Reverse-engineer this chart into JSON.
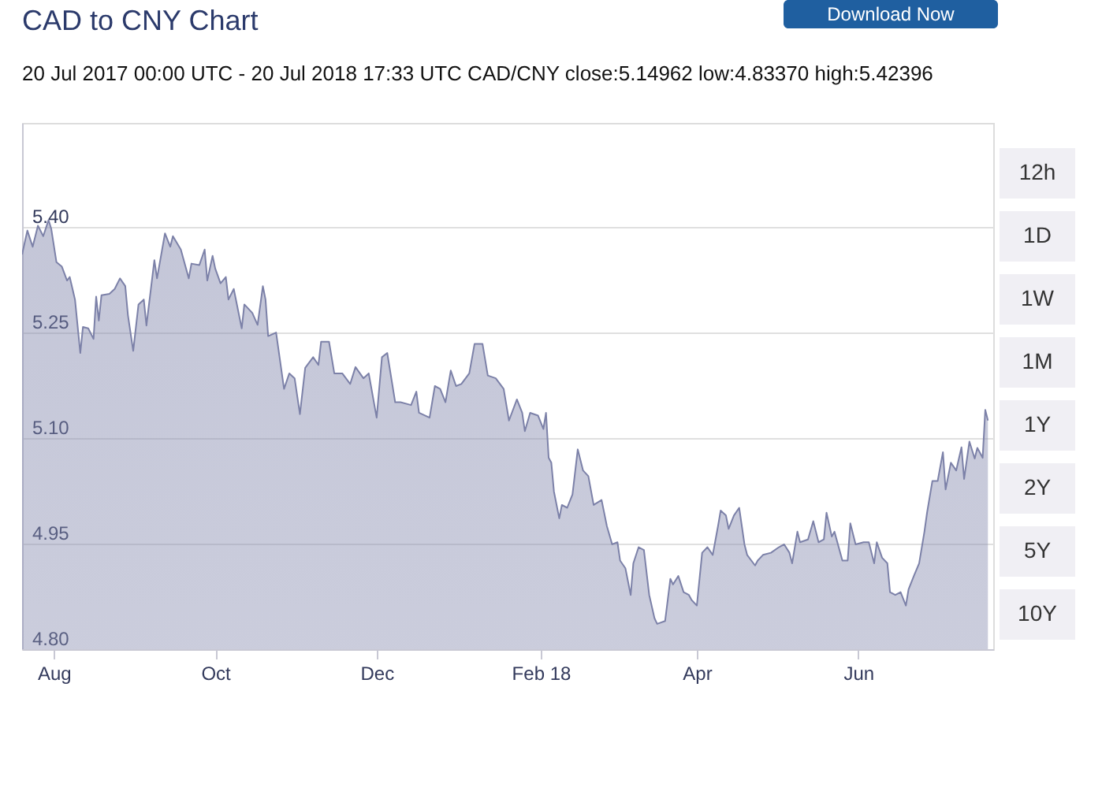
{
  "chart_data": {
    "type": "area",
    "title": "CAD to CNY Chart",
    "subtitle": "20 Jul 2017 00:00 UTC - 20 Jul 2018 17:33 UTC   CAD/CNY close:5.14962 low:4.83370 high:5.42396",
    "annotations": [
      "Download Now",
      "12h",
      "1D",
      "1W",
      "1M",
      "1Y",
      "2Y",
      "5Y",
      "10Y"
    ],
    "xlim": [
      "2017-07-20",
      "2018-07-22"
    ],
    "xticks": [
      {
        "value": "2017-08-01",
        "label": "Aug"
      },
      {
        "value": "2017-10-01",
        "label": "Oct"
      },
      {
        "value": "2017-12-01",
        "label": "Dec"
      },
      {
        "value": "2018-02-01",
        "label": "Feb 18"
      },
      {
        "value": "2018-04-01",
        "label": "Apr"
      },
      {
        "value": "2018-06-01",
        "label": "Jun"
      }
    ],
    "ylim": [
      4.8,
      5.548
    ],
    "yticks": [
      {
        "value": 4.8,
        "label": "4.80"
      },
      {
        "value": 4.95,
        "label": "4.95"
      },
      {
        "value": 5.1,
        "label": "5.10"
      },
      {
        "value": 5.25,
        "label": "5.25"
      },
      {
        "value": 5.4,
        "label": "5.40"
      }
    ],
    "grid": "y",
    "x": [
      "2017-07-20",
      "2017-07-22",
      "2017-07-24",
      "2017-07-26",
      "2017-07-28",
      "2017-07-30",
      "2017-07-31",
      "2017-08-02",
      "2017-08-04",
      "2017-08-06",
      "2017-08-07",
      "2017-08-09",
      "2017-08-11",
      "2017-08-12",
      "2017-08-14",
      "2017-08-16",
      "2017-08-17",
      "2017-08-18",
      "2017-08-19",
      "2017-08-22",
      "2017-08-24",
      "2017-08-26",
      "2017-08-28",
      "2017-08-29",
      "2017-08-31",
      "2017-09-02",
      "2017-09-04",
      "2017-09-05",
      "2017-09-08",
      "2017-09-09",
      "2017-09-12",
      "2017-09-14",
      "2017-09-15",
      "2017-09-18",
      "2017-09-21",
      "2017-09-22",
      "2017-09-25",
      "2017-09-27",
      "2017-09-28",
      "2017-09-30",
      "2017-10-01",
      "2017-10-03",
      "2017-10-05",
      "2017-10-06",
      "2017-10-08",
      "2017-10-11",
      "2017-10-12",
      "2017-10-15",
      "2017-10-17",
      "2017-10-19",
      "2017-10-20",
      "2017-10-21",
      "2017-10-24",
      "2017-10-27",
      "2017-10-29",
      "2017-10-31",
      "2017-11-02",
      "2017-11-04",
      "2017-11-07",
      "2017-11-09",
      "2017-11-10",
      "2017-11-13",
      "2017-11-15",
      "2017-11-18",
      "2017-11-21",
      "2017-11-23",
      "2017-11-26",
      "2017-11-28",
      "2017-12-01",
      "2017-12-03",
      "2017-12-05",
      "2017-12-08",
      "2017-12-10",
      "2017-12-14",
      "2017-12-16",
      "2017-12-17",
      "2017-12-21",
      "2017-12-23",
      "2017-12-25",
      "2017-12-27",
      "2017-12-29",
      "2017-12-31",
      "2018-01-02",
      "2018-01-05",
      "2018-01-07",
      "2018-01-10",
      "2018-01-12",
      "2018-01-15",
      "2018-01-18",
      "2018-01-20",
      "2018-01-23",
      "2018-01-25",
      "2018-01-26",
      "2018-01-28",
      "2018-01-31",
      "2018-02-02",
      "2018-02-03",
      "2018-02-04",
      "2018-02-05",
      "2018-02-06",
      "2018-02-08",
      "2018-02-09",
      "2018-02-11",
      "2018-02-13",
      "2018-02-15",
      "2018-02-17",
      "2018-02-19",
      "2018-02-21",
      "2018-02-24",
      "2018-02-26",
      "2018-02-28",
      "2018-03-02",
      "2018-03-03",
      "2018-03-05",
      "2018-03-07",
      "2018-03-08",
      "2018-03-10",
      "2018-03-12",
      "2018-03-14",
      "2018-03-16",
      "2018-03-17",
      "2018-03-20",
      "2018-03-22",
      "2018-03-23",
      "2018-03-25",
      "2018-03-27",
      "2018-03-29",
      "2018-03-30",
      "2018-04-01",
      "2018-04-03",
      "2018-04-05",
      "2018-04-07",
      "2018-04-09",
      "2018-04-10",
      "2018-04-12",
      "2018-04-13",
      "2018-04-15",
      "2018-04-17",
      "2018-04-19",
      "2018-04-20",
      "2018-04-23",
      "2018-04-24",
      "2018-04-26",
      "2018-04-29",
      "2018-05-02",
      "2018-05-04",
      "2018-05-06",
      "2018-05-07",
      "2018-05-09",
      "2018-05-10",
      "2018-05-13",
      "2018-05-15",
      "2018-05-17",
      "2018-05-19",
      "2018-05-20",
      "2018-05-22",
      "2018-05-23",
      "2018-05-26",
      "2018-05-28",
      "2018-05-29",
      "2018-05-31",
      "2018-06-03",
      "2018-06-05",
      "2018-06-07",
      "2018-06-08",
      "2018-06-10",
      "2018-06-12",
      "2018-06-13",
      "2018-06-15",
      "2018-06-17",
      "2018-06-19",
      "2018-06-20",
      "2018-06-22",
      "2018-06-24",
      "2018-06-26",
      "2018-06-27",
      "2018-06-29",
      "2018-07-01",
      "2018-07-03",
      "2018-07-04",
      "2018-07-06",
      "2018-07-08",
      "2018-07-10",
      "2018-07-11",
      "2018-07-13",
      "2018-07-15",
      "2018-07-16",
      "2018-07-18",
      "2018-07-19",
      "2018-07-20"
    ],
    "series": [
      {
        "color": "#7c81a8",
        "values": [
          5.361,
          5.395,
          5.372,
          5.402,
          5.387,
          5.41,
          5.398,
          5.35,
          5.344,
          5.324,
          5.329,
          5.297,
          5.221,
          5.258,
          5.256,
          5.241,
          5.301,
          5.267,
          5.303,
          5.305,
          5.312,
          5.327,
          5.316,
          5.275,
          5.224,
          5.29,
          5.297,
          5.26,
          5.353,
          5.327,
          5.391,
          5.372,
          5.387,
          5.368,
          5.327,
          5.348,
          5.346,
          5.368,
          5.324,
          5.359,
          5.341,
          5.32,
          5.329,
          5.297,
          5.312,
          5.256,
          5.29,
          5.278,
          5.261,
          5.316,
          5.297,
          5.245,
          5.25,
          5.17,
          5.192,
          5.185,
          5.134,
          5.2,
          5.215,
          5.204,
          5.237,
          5.237,
          5.192,
          5.192,
          5.177,
          5.201,
          5.185,
          5.192,
          5.129,
          5.215,
          5.221,
          5.151,
          5.151,
          5.147,
          5.166,
          5.136,
          5.129,
          5.174,
          5.17,
          5.151,
          5.196,
          5.174,
          5.177,
          5.192,
          5.234,
          5.234,
          5.189,
          5.185,
          5.17,
          5.125,
          5.155,
          5.136,
          5.11,
          5.136,
          5.132,
          5.113,
          5.136,
          5.072,
          5.065,
          5.024,
          4.986,
          5.005,
          5.001,
          5.02,
          5.084,
          5.054,
          5.046,
          5.005,
          5.012,
          4.975,
          4.949,
          4.952,
          4.926,
          4.915,
          4.877,
          4.922,
          4.945,
          4.941,
          4.877,
          4.844,
          4.836,
          4.84,
          4.9,
          4.892,
          4.904,
          4.881,
          4.877,
          4.87,
          4.862,
          4.937,
          4.945,
          4.934,
          4.975,
          4.997,
          4.99,
          4.971,
          4.99,
          5.001,
          4.949,
          4.934,
          4.919,
          4.926,
          4.934,
          4.937,
          4.945,
          4.949,
          4.937,
          4.922,
          4.967,
          4.952,
          4.956,
          4.982,
          4.952,
          4.956,
          4.994,
          4.96,
          4.967,
          4.926,
          4.926,
          4.979,
          4.949,
          4.952,
          4.952,
          4.922,
          4.952,
          4.93,
          4.922,
          4.881,
          4.877,
          4.881,
          4.862,
          4.885,
          4.904,
          4.922,
          4.967,
          4.994,
          5.039,
          5.039,
          5.08,
          5.027,
          5.065,
          5.054,
          5.087,
          5.042,
          5.095,
          5.071,
          5.086,
          5.072,
          5.14,
          5.125
        ]
      }
    ]
  }
}
